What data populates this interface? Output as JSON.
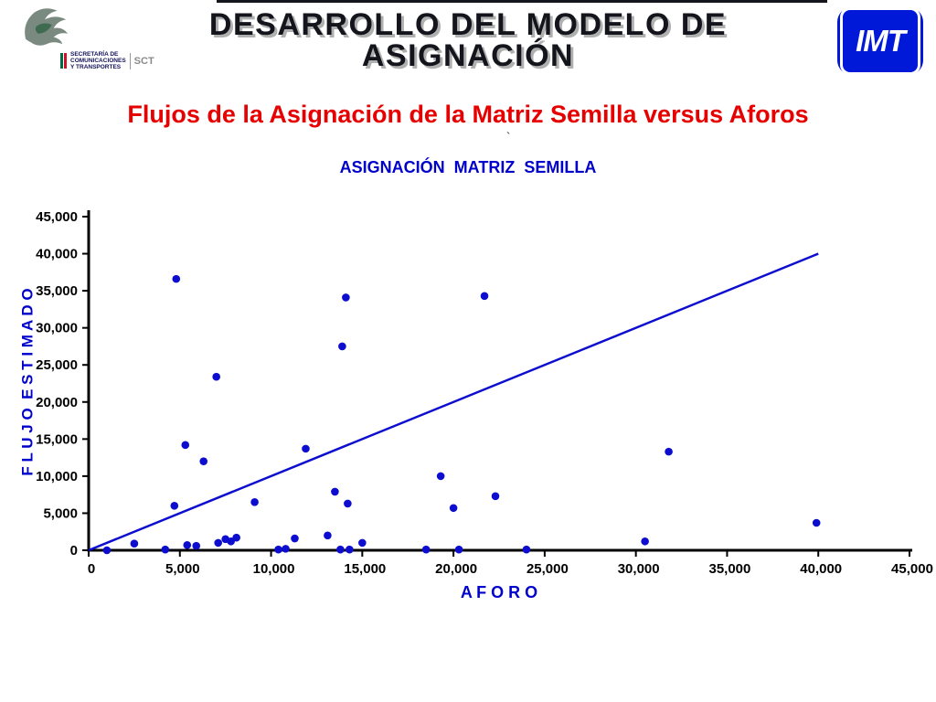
{
  "top": {
    "title_line1": "DESARROLLO DEL MODELO DE",
    "title_line2": "ASIGNACIÓN"
  },
  "sct_logo": {
    "line1": "SECRETARÍA DE",
    "line2": "COMUNICACIONES",
    "line3": "Y TRANSPORTES",
    "acronym": "SCT"
  },
  "imt_logo": {
    "text": "IMT"
  },
  "red_heading": "Flujos de la Asignación de la Matriz Semilla versus Aforos",
  "stray_mark": "`",
  "chart_data": {
    "type": "scatter",
    "title": "ASIGNACIÓN  MATRIZ  SEMILLA",
    "xlabel": "A F O R O",
    "ylabel": "F L U J O  E S T I M A D O",
    "xlim": [
      0,
      45000
    ],
    "ylim": [
      0,
      45000
    ],
    "xticks": [
      0,
      5000,
      10000,
      15000,
      20000,
      25000,
      30000,
      35000,
      40000,
      45000
    ],
    "xtick_labels": [
      "0",
      "5,000",
      "10,000",
      "15,000",
      "20,000",
      "25,000",
      "30,000",
      "35,000",
      "40,000",
      "45,000"
    ],
    "yticks": [
      0,
      5000,
      10000,
      15000,
      20000,
      25000,
      30000,
      35000,
      40000,
      45000
    ],
    "ytick_labels": [
      "0",
      "5,000",
      "10,000",
      "15,000",
      "20,000",
      "25,000",
      "30,000",
      "35,000",
      "40,000",
      "45,000"
    ],
    "grid": false,
    "legend": false,
    "point_color": "#0d0dcf",
    "line_color": "#0d0dcf",
    "points": [
      [
        1000,
        0
      ],
      [
        2500,
        900
      ],
      [
        4200,
        100
      ],
      [
        4700,
        6000
      ],
      [
        4800,
        36600
      ],
      [
        5300,
        14200
      ],
      [
        5400,
        700
      ],
      [
        5900,
        600
      ],
      [
        6300,
        12000
      ],
      [
        7000,
        23400
      ],
      [
        7100,
        1000
      ],
      [
        7500,
        1500
      ],
      [
        7800,
        1200
      ],
      [
        8100,
        1700
      ],
      [
        9100,
        6500
      ],
      [
        10400,
        100
      ],
      [
        10800,
        200
      ],
      [
        11300,
        1600
      ],
      [
        11900,
        13700
      ],
      [
        13100,
        2000
      ],
      [
        13500,
        7900
      ],
      [
        13800,
        100
      ],
      [
        13900,
        27500
      ],
      [
        14100,
        34100
      ],
      [
        14200,
        6300
      ],
      [
        14300,
        100
      ],
      [
        15000,
        1000
      ],
      [
        18500,
        100
      ],
      [
        19300,
        10000
      ],
      [
        20000,
        5700
      ],
      [
        20300,
        100
      ],
      [
        21700,
        34300
      ],
      [
        22300,
        7300
      ],
      [
        24000,
        100
      ],
      [
        30500,
        1200
      ],
      [
        31800,
        13300
      ],
      [
        39900,
        3700
      ]
    ],
    "trend_line": {
      "x1": 0,
      "y1": 0,
      "x2": 40000,
      "y2": 40000
    }
  },
  "colors": {
    "heading_red": "#e60000",
    "chart_blue": "#0000cc",
    "imt_blue": "#0018d8",
    "flag_green": "#006847",
    "flag_red": "#ce1126"
  }
}
